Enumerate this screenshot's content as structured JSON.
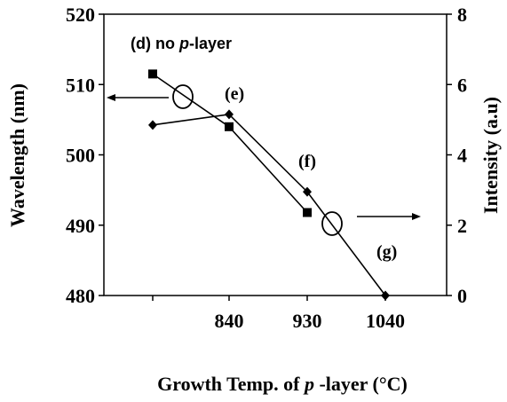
{
  "chart_data": {
    "type": "line",
    "x_categories": [
      "",
      "840",
      "930",
      "1040"
    ],
    "xlabel": {
      "pre": "Growth Temp. of ",
      "italic": "p",
      "post": " -layer (°C)"
    },
    "ylabel_left": "Wavelength (nm)",
    "ylabel_right": "Intensity (a.u)",
    "ylim_left": [
      480,
      520
    ],
    "ylim_right": [
      0,
      8
    ],
    "yticks_left": [
      "480",
      "490",
      "500",
      "510",
      "520"
    ],
    "yticks_right": [
      "0",
      "2",
      "4",
      "6",
      "8"
    ],
    "grid": false,
    "series": [
      {
        "axis": "left",
        "marker": "square",
        "x": [
          "no p-layer",
          "840",
          "930"
        ],
        "values": [
          511.5,
          504,
          491.8
        ]
      },
      {
        "axis": "right",
        "marker": "diamond",
        "x": [
          "no p-layer",
          "840",
          "930",
          "1040"
        ],
        "values": [
          4.85,
          5.15,
          2.95,
          0
        ]
      }
    ],
    "annotations": [
      {
        "id": "d",
        "pre": "(d) no ",
        "italic": "p",
        "post": "-layer"
      },
      {
        "id": "e",
        "text": "(e)"
      },
      {
        "id": "f",
        "text": "(f)"
      },
      {
        "id": "g",
        "text": "(g)"
      }
    ]
  }
}
